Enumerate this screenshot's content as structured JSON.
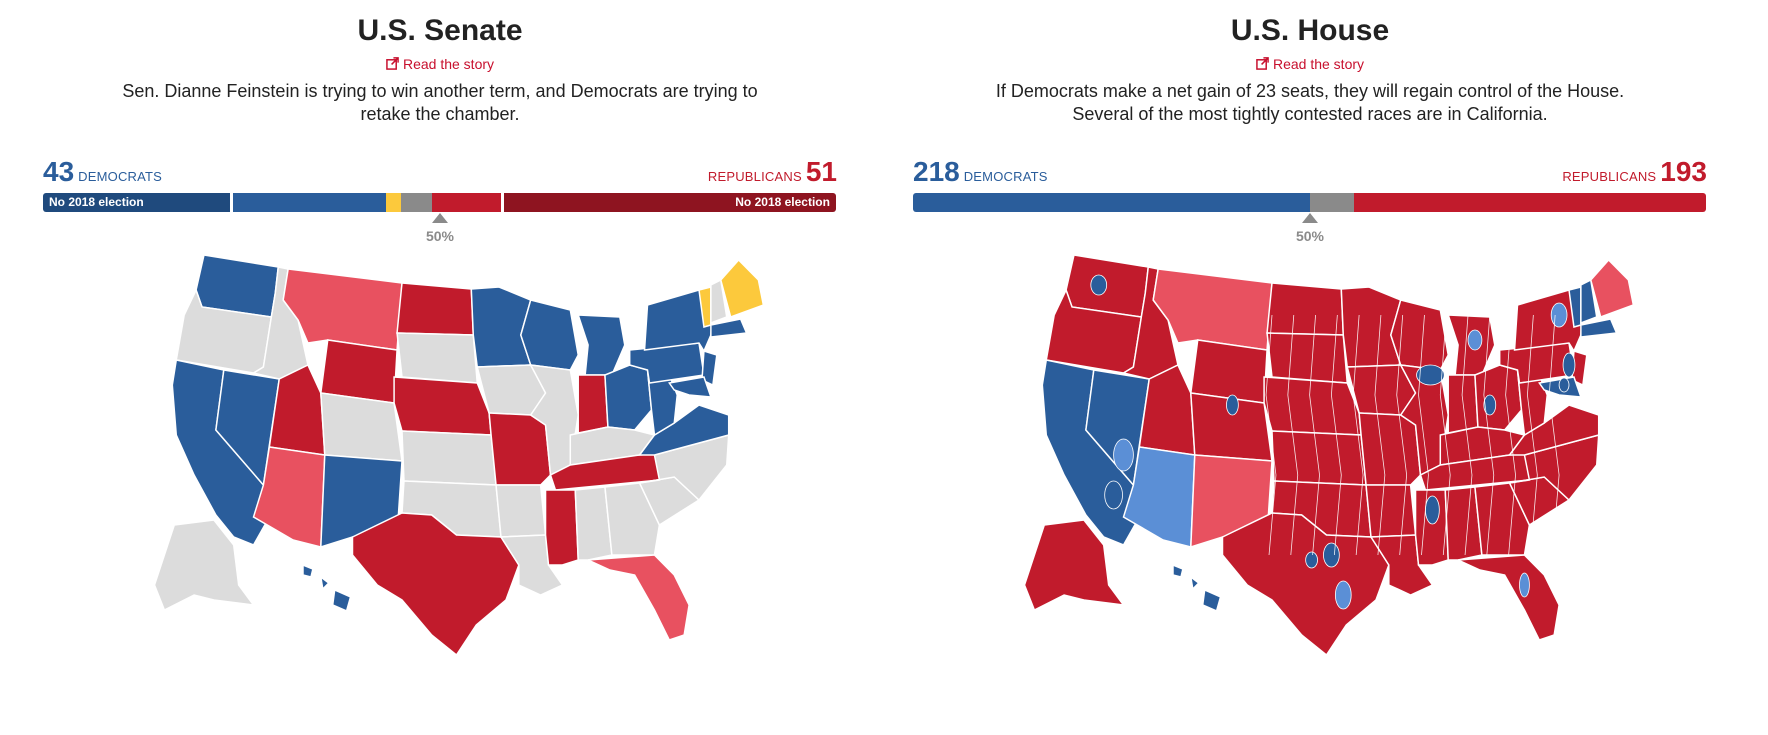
{
  "colors": {
    "dem_dark": "#1f4a7d",
    "dem": "#2a5d9b",
    "dem_light": "#5b8fd6",
    "yellow": "#fcc93c",
    "gray": "#8a8a8a",
    "rep": "#c11b2c",
    "rep_light": "#e85160",
    "rep_dark": "#8e1420",
    "none": "#dcdcdc"
  },
  "senate": {
    "title": "U.S. Senate",
    "story_link": "Read the story",
    "description": "Sen. Dianne Feinstein is trying to win another term, and Democrats are trying to retake the chamber.",
    "dem_count": "43",
    "dem_label": "DEMOCRATS",
    "rep_count": "51",
    "rep_label": "REPUBLICANS",
    "bar": [
      {
        "name": "dem-no-election",
        "seats": 23,
        "color": "dem_dark",
        "label": "No 2018 election"
      },
      {
        "name": "dem-2018",
        "seats": 20,
        "color": "dem",
        "label": ""
      },
      {
        "name": "independent",
        "seats": 2,
        "color": "yellow",
        "label": ""
      },
      {
        "name": "undecided",
        "seats": 4,
        "color": "gray",
        "label": ""
      },
      {
        "name": "rep-2018",
        "seats": 9,
        "color": "rep",
        "label": ""
      },
      {
        "name": "rep-no-election",
        "seats": 42,
        "color": "rep_dark",
        "label": "No 2018 election"
      }
    ],
    "midpoint_label": "50%"
  },
  "house": {
    "title": "U.S. House",
    "story_link": "Read the story",
    "description": "If Democrats make a net gain of 23 seats, they will regain control of the House. Several of the most tightly contested races are in California.",
    "dem_count": "218",
    "dem_label": "DEMOCRATS",
    "rep_count": "193",
    "rep_label": "REPUBLICANS",
    "bar": [
      {
        "name": "dem",
        "seats": 218,
        "color": "dem",
        "label": ""
      },
      {
        "name": "undecided",
        "seats": 24,
        "color": "gray",
        "label": ""
      },
      {
        "name": "rep",
        "seats": 193,
        "color": "rep",
        "label": ""
      }
    ],
    "midpoint_label": "50%"
  },
  "senate_map": {
    "WA": "dem",
    "OR": "none",
    "CA": "dem",
    "NV": "dem",
    "ID": "none",
    "MT": "rep_light",
    "WY": "rep",
    "UT": "rep",
    "AZ": "rep_light",
    "NM": "dem",
    "CO": "none",
    "ND": "rep",
    "SD": "none",
    "NE": "rep",
    "KS": "none",
    "OK": "none",
    "TX": "rep",
    "MN": "dem",
    "IA": "none",
    "MO": "rep",
    "AR": "none",
    "LA": "none",
    "WI": "dem",
    "IL": "none",
    "MI": "dem",
    "IN": "rep",
    "OH": "dem",
    "KY": "none",
    "TN": "rep",
    "MS": "rep",
    "AL": "none",
    "GA": "none",
    "FL": "rep_light",
    "SC": "none",
    "NC": "none",
    "VA": "dem",
    "WV": "dem",
    "PA": "dem",
    "NY": "dem",
    "VT": "yellow",
    "NH": "none",
    "ME": "yellow",
    "MA": "dem",
    "NJ": "dem",
    "MD": "dem",
    "AK": "none",
    "HI": "dem"
  },
  "house_map": {
    "WA": "rep",
    "OR": "rep",
    "CA": "dem",
    "NV": "dem",
    "ID": "rep",
    "MT": "rep_light",
    "WY": "rep",
    "UT": "rep",
    "AZ": "dem_light",
    "NM": "rep_light",
    "CO": "rep",
    "ND": "rep",
    "SD": "rep",
    "NE": "rep",
    "KS": "rep",
    "OK": "rep",
    "TX": "rep",
    "MN": "rep",
    "IA": "rep",
    "MO": "rep",
    "AR": "rep",
    "LA": "rep",
    "WI": "rep",
    "IL": "rep",
    "MI": "rep",
    "IN": "rep",
    "OH": "rep",
    "KY": "rep",
    "TN": "rep",
    "MS": "rep",
    "AL": "rep",
    "GA": "rep",
    "FL": "rep",
    "SC": "rep",
    "NC": "rep",
    "VA": "rep",
    "WV": "rep",
    "PA": "rep",
    "NY": "rep",
    "VT": "dem",
    "NH": "dem",
    "ME": "rep_light",
    "MA": "dem",
    "NJ": "rep",
    "MD": "dem",
    "AK": "rep",
    "HI": "dem"
  }
}
